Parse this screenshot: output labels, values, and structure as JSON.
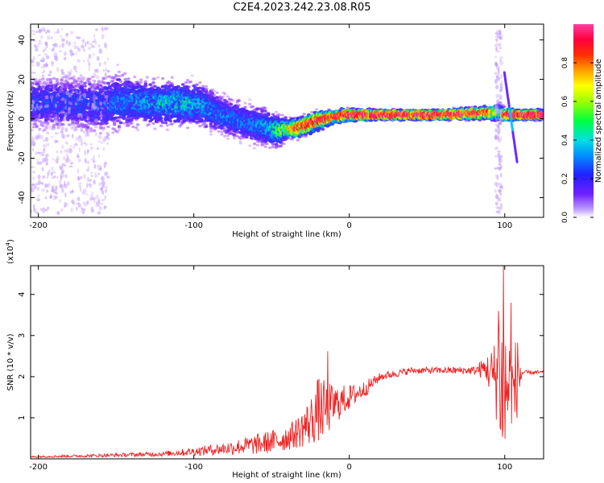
{
  "title": "C2E4.2023.242.23.08.R05",
  "chart_data": [
    {
      "type": "heatmap",
      "xlabel": "Height of straight line (km)",
      "ylabel": "Frequency (Hz)",
      "xlim": [
        -205,
        125
      ],
      "ylim": [
        -50,
        48
      ],
      "xticks": [
        -200,
        -100,
        0,
        100
      ],
      "yticks": [
        -40,
        -20,
        0,
        20,
        40
      ],
      "ridge": {
        "x": [
          -205,
          -180,
          -160,
          -150,
          -130,
          -110,
          -95,
          -85,
          -75,
          -65,
          -55,
          -45,
          -40,
          -35,
          -30,
          -20,
          -10,
          0,
          20,
          60,
          90,
          97,
          100,
          103,
          110,
          125
        ],
        "freq": [
          8,
          8,
          7,
          9,
          8,
          8,
          7,
          3,
          0,
          -2,
          -4,
          -6,
          -5,
          -5,
          -4,
          -1,
          1,
          2,
          2,
          2,
          3,
          3,
          2,
          2,
          2,
          2
        ],
        "amp": [
          0.3,
          0.3,
          0.3,
          0.35,
          0.4,
          0.45,
          0.4,
          0.35,
          0.35,
          0.35,
          0.4,
          0.5,
          0.7,
          0.85,
          0.9,
          0.9,
          0.9,
          0.95,
          1.0,
          1.0,
          0.9,
          0.5,
          0.8,
          1.0,
          1.0,
          1.0
        ],
        "width": [
          8,
          8,
          9,
          9,
          7,
          7,
          7,
          6,
          6,
          6,
          6,
          5,
          3,
          3,
          3,
          3,
          2,
          2,
          1.5,
          1.5,
          2,
          3,
          2,
          2,
          1.5,
          1.5
        ]
      },
      "colorbar": {
        "label": "Normalized spectral amplitude",
        "ticks": [
          0.0,
          0.2,
          0.4,
          0.6,
          0.8
        ],
        "range": [
          0,
          1
        ],
        "colors": [
          "#ffffff",
          "#a000ff",
          "#3030ff",
          "#00c8ff",
          "#00ff60",
          "#ffff00",
          "#ff8000",
          "#ff0000",
          "#ff40a0"
        ]
      }
    },
    {
      "type": "line",
      "xlabel": "Height of straight line (km)",
      "ylabel": "SNR (10 * v/v)",
      "y_multiplier": "(x10",
      "y_multiplier_exp": "4",
      "y_multiplier_close": ")",
      "xlim": [
        -205,
        125
      ],
      "ylim": [
        0.0,
        4.7
      ],
      "xticks": [
        -200,
        -100,
        0,
        100
      ],
      "yticks": [
        1,
        2,
        3,
        4
      ],
      "color": "#ee2222",
      "envelope": {
        "x": [
          -205,
          -160,
          -120,
          -100,
          -80,
          -60,
          -45,
          -35,
          -25,
          -20,
          -15,
          -10,
          -5,
          0,
          10,
          20,
          40,
          60,
          80,
          88,
          93,
          96,
          98,
          100,
          102,
          105,
          108,
          112,
          125
        ],
        "base": [
          0.05,
          0.08,
          0.12,
          0.18,
          0.25,
          0.35,
          0.45,
          0.6,
          0.9,
          1.2,
          1.2,
          1.3,
          1.4,
          1.5,
          1.7,
          2.0,
          2.15,
          2.15,
          2.15,
          2.2,
          2.0,
          2.2,
          1.8,
          1.5,
          1.8,
          1.5,
          2.0,
          2.1,
          2.1
        ],
        "noise": [
          0.02,
          0.04,
          0.06,
          0.1,
          0.15,
          0.25,
          0.3,
          0.35,
          0.6,
          0.8,
          0.7,
          0.5,
          0.4,
          0.3,
          0.2,
          0.1,
          0.08,
          0.08,
          0.1,
          0.3,
          0.8,
          1.5,
          2.0,
          2.0,
          1.5,
          1.3,
          1.0,
          0.05,
          0.05
        ]
      },
      "peaks": [
        {
          "x": -14,
          "y": 2.62
        },
        {
          "x": 96,
          "y": 3.6
        },
        {
          "x": 99,
          "y": 4.7
        },
        {
          "x": 104,
          "y": 3.8
        }
      ]
    }
  ]
}
